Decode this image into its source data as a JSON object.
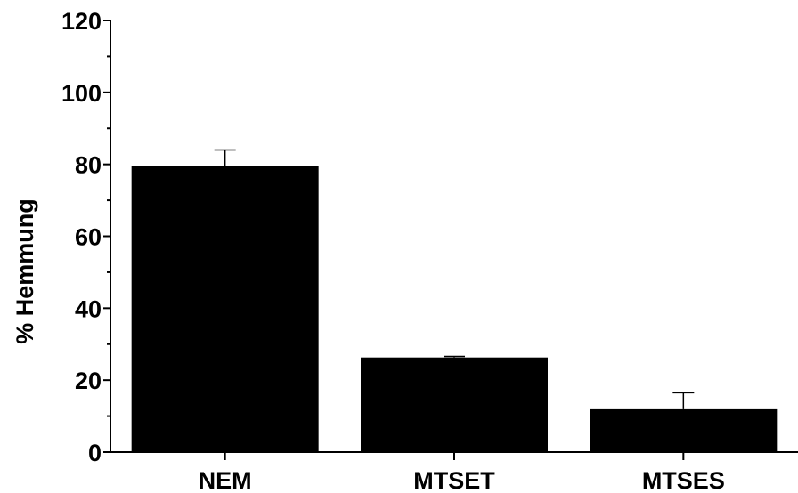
{
  "chart_data": {
    "type": "bar",
    "title": "",
    "xlabel": "",
    "ylabel": "% Hemmung",
    "categories": [
      "NEM",
      "MTSET",
      "MTSES"
    ],
    "series": [
      {
        "values": [
          79.5,
          26.3,
          11.9
        ],
        "error": [
          4.5,
          0.3,
          4.6
        ]
      }
    ],
    "ylim": [
      0,
      120
    ],
    "yticks": [
      0,
      20,
      40,
      60,
      80,
      100,
      120
    ],
    "yminor_step": 10,
    "grid": false,
    "legend": "none",
    "bar_color": "#000000",
    "axis_color": "#000000"
  }
}
